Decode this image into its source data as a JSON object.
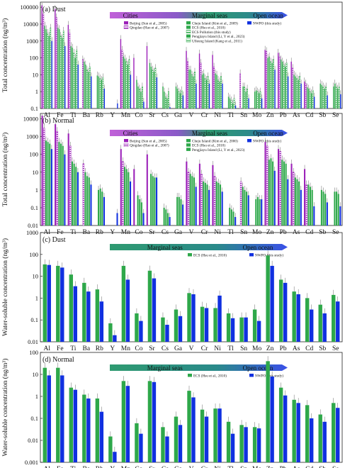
{
  "figure": {
    "elements": [
      "Al",
      "Fe",
      "Ti",
      "Ba",
      "Rb",
      "Y",
      "Mn",
      "Co",
      "Sr",
      "Cs",
      "Ga",
      "V",
      "Cr",
      "Ni",
      "Tl",
      "Sn",
      "Mo",
      "Zn",
      "Pb",
      "As",
      "Cd",
      "Sb",
      "Se"
    ],
    "colors": {
      "cities": "#9b1fb8",
      "marginal": "#2ea84a",
      "ocean": "#1030e0",
      "banner_cities": "#c060d8",
      "banner_marginal": "#2e9a70",
      "banner_ocean": "#3a50e8"
    }
  },
  "chart_data": [
    {
      "type": "bar",
      "panel_label": "(a) Dust",
      "ylabel": "Total concentration (ng/m³)",
      "ylim": [
        0.1,
        200000
      ],
      "yscale": "log",
      "yticks": [
        "0.1",
        "1",
        "10",
        "100",
        "1000",
        "10000",
        "100000"
      ],
      "banner": [
        "Cities",
        "Marginal seas",
        "Open ocean"
      ],
      "series": [
        {
          "name": "Beijing (Sun et al., 2005)",
          "group": "cities",
          "values": [
            130000,
            80000,
            9000,
            null,
            null,
            null,
            1300,
            100,
            500,
            null,
            null,
            260,
            180,
            150,
            null,
            null,
            null,
            300,
            200,
            60,
            4,
            null,
            null
          ]
        },
        {
          "name": "Qingdao (Hao et al., 2007)",
          "group": "cities",
          "values": [
            40000,
            25000,
            3000,
            80,
            null,
            null,
            300,
            null,
            null,
            null,
            null,
            60,
            50,
            30,
            null,
            12,
            null,
            250,
            120,
            25,
            3,
            null,
            null
          ]
        },
        {
          "name": "Cheju Island (Kim et al., 2009)",
          "group": "marginal",
          "values": [
            8000,
            6000,
            500,
            60,
            9,
            null,
            120,
            5,
            50,
            2,
            2,
            20,
            10,
            12,
            0.5,
            null,
            1,
            100,
            80,
            10,
            1.8,
            3,
            2
          ]
        },
        {
          "name": "ECS (Hsu et al., 2010)",
          "group": "marginal",
          "values": [
            5000,
            5000,
            400,
            40,
            8,
            null,
            90,
            2,
            30,
            1,
            1.5,
            20,
            12,
            10,
            0.4,
            2,
            1.2,
            120,
            60,
            8,
            1.5,
            2.5,
            3
          ]
        },
        {
          "name": "ECS Pollution (this study)",
          "group": "marginal",
          "values": [
            3000,
            2000,
            200,
            20,
            6,
            null,
            60,
            1.5,
            20,
            0.5,
            1,
            10,
            6,
            5,
            0.3,
            2,
            1,
            60,
            40,
            6,
            1,
            2,
            2
          ]
        },
        {
          "name": "Pengjiayu Island (Li, Y et al., 2023)",
          "group": "marginal",
          "values": [
            2000,
            1500,
            100,
            15,
            5,
            null,
            40,
            1,
            15,
            0.4,
            0.8,
            8,
            5,
            4,
            0.2,
            1,
            0.8,
            50,
            30,
            5,
            0.8,
            1.5,
            1.5
          ]
        },
        {
          "name": "Ulleung Island (Kang et al., 2011)",
          "group": "marginal",
          "values": [
            6000,
            4000,
            300,
            30,
            7,
            null,
            80,
            2,
            25,
            1,
            1.2,
            15,
            8,
            8,
            0.4,
            1.5,
            1,
            80,
            50,
            8,
            1.2,
            2,
            2
          ]
        },
        {
          "name": "NWPO (this study)",
          "group": "ocean",
          "values": [
            1000,
            500,
            40,
            8,
            1.5,
            0.2,
            10,
            0.25,
            7,
            0.12,
            0.6,
            3,
            3,
            3,
            0.15,
            0.4,
            0.4,
            20,
            8,
            3,
            0.5,
            0.6,
            0.7
          ]
        }
      ]
    },
    {
      "type": "bar",
      "panel_label": "(b) Normal",
      "ylabel": "Total concentration (ng/m³)",
      "ylim": [
        0.01,
        20000
      ],
      "yscale": "log",
      "yticks": [
        "0.01",
        "0.1",
        "1",
        "10",
        "100",
        "1000",
        "10000"
      ],
      "banner": [
        "Cities",
        "Marginal seas",
        "Open ocean"
      ],
      "series": [
        {
          "name": "Beijing (Sun et al., 2005)",
          "group": "cities",
          "values": [
            15000,
            5000,
            1500,
            null,
            null,
            null,
            200,
            15,
            100,
            null,
            null,
            40,
            30,
            25,
            null,
            null,
            null,
            500,
            200,
            30,
            15,
            null,
            null
          ]
        },
        {
          "name": "Qingdao (Hao et al., 2007)",
          "group": "cities",
          "values": [
            3000,
            2000,
            300,
            30,
            null,
            null,
            40,
            null,
            null,
            null,
            null,
            10,
            8,
            6,
            null,
            3,
            null,
            300,
            150,
            10,
            2,
            null,
            null
          ]
        },
        {
          "name": "Cheju Island (Kim et al., 2000)",
          "group": "marginal",
          "values": [
            600,
            500,
            40,
            10,
            1,
            null,
            20,
            0.5,
            8,
            0.1,
            0.4,
            8,
            3,
            3,
            0.1,
            1.5,
            0.3,
            50,
            50,
            5,
            2,
            1,
            0.8
          ]
        },
        {
          "name": "ECS (Hsu et al., 2010)",
          "group": "marginal",
          "values": [
            500,
            400,
            30,
            6,
            1.2,
            null,
            15,
            0.3,
            6,
            0.08,
            0.4,
            6,
            2.5,
            2.5,
            0.08,
            1,
            0.4,
            60,
            40,
            4,
            1.5,
            0.8,
            0.8
          ]
        },
        {
          "name": "Pengjiayu Island (Li, Y et al., 2023)",
          "group": "marginal",
          "values": [
            400,
            300,
            20,
            5,
            0.8,
            null,
            10,
            0.2,
            5,
            0.05,
            0.3,
            5,
            2,
            2,
            0.06,
            0.8,
            0.3,
            40,
            30,
            3,
            1,
            0.6,
            0.6
          ]
        },
        {
          "name": "NWPO (this study)",
          "group": "ocean",
          "values": [
            200,
            100,
            10,
            2,
            0.4,
            0.05,
            3,
            0.05,
            5,
            0.03,
            0.15,
            1.5,
            1,
            0.8,
            0.03,
            0.5,
            0.3,
            12,
            4,
            1,
            0.12,
            0.2,
            0.12
          ]
        }
      ]
    },
    {
      "type": "bar",
      "panel_label": "(c) Dust",
      "ylabel": "Water-soluble concentration (ng/m³)",
      "ylim": [
        0.01,
        1000
      ],
      "yscale": "log",
      "yticks": [
        "0.01",
        "0.1",
        "1",
        "10",
        "100",
        "1000"
      ],
      "banner": [
        "Marginal seas",
        "Open ocean"
      ],
      "series": [
        {
          "name": "ECS (Hsu et al., 2010)",
          "group": "marginal",
          "values": [
            35,
            30,
            12,
            5,
            2.5,
            0.07,
            30,
            0.2,
            18,
            0.13,
            0.3,
            1.7,
            0.4,
            0.35,
            0.2,
            0.13,
            0.3,
            90,
            7,
            2,
            1,
            0.5,
            1.4
          ]
        },
        {
          "name": "NWPO (this study)",
          "group": "ocean",
          "values": [
            33,
            25,
            3.5,
            2,
            0.7,
            0.02,
            7,
            0.09,
            8,
            0.06,
            0.15,
            1.5,
            0.35,
            1.3,
            0.12,
            0.13,
            0.09,
            30,
            5,
            1.5,
            0.3,
            0.2,
            0.7
          ]
        }
      ]
    },
    {
      "type": "bar",
      "panel_label": "(d) Normal",
      "ylabel": "Water-soluble concentration (ng/m³)",
      "ylim": [
        0.001,
        100
      ],
      "yscale": "log",
      "yticks": [
        "0.001",
        "0.01",
        "0.1",
        "1",
        "10",
        "100"
      ],
      "banner": [
        "Marginal seas",
        "Open ocean"
      ],
      "series": [
        {
          "name": "ECS (Hsu et al., 2010)",
          "group": "marginal",
          "values": [
            20,
            20,
            2.5,
            1.2,
            0.8,
            0.015,
            5,
            0.06,
            5,
            0.04,
            0.12,
            1.8,
            0.25,
            0.28,
            0.07,
            0.05,
            0.04,
            40,
            2.5,
            0.7,
            0.4,
            0.15,
            0.5
          ]
        },
        {
          "name": "NWPO (this study)",
          "group": "ocean",
          "values": [
            9,
            9,
            2,
            0.8,
            0.2,
            0.003,
            3,
            0.02,
            4.5,
            0.015,
            0.05,
            0.9,
            0.12,
            0.28,
            0.02,
            0.04,
            0.035,
            8,
            1.1,
            0.5,
            0.1,
            0.07,
            0.3
          ]
        }
      ]
    }
  ]
}
